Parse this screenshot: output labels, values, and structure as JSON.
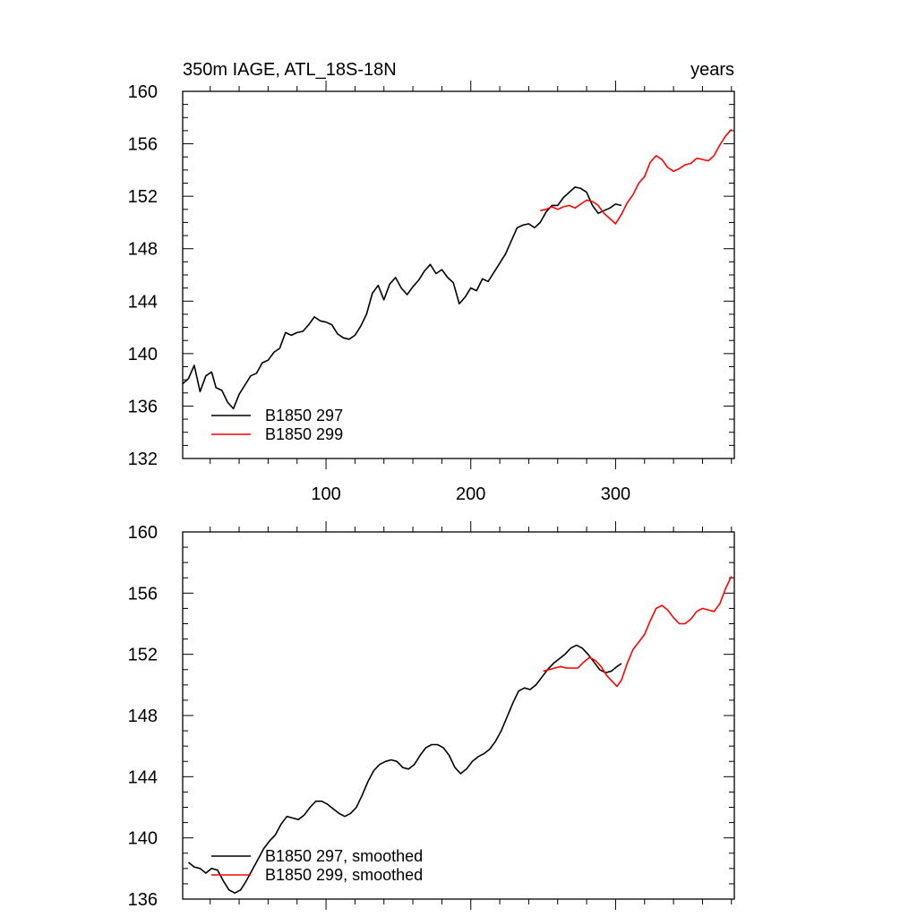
{
  "chart_data": [
    {
      "type": "line",
      "title": "350m IAGE, ATL_18S-18N",
      "units": "years",
      "xlim": [
        1,
        382
      ],
      "ylim": [
        132,
        160
      ],
      "x_ticks": [
        100,
        200,
        300
      ],
      "x_tick_labels": [
        "100",
        "200",
        "300"
      ],
      "y_ticks": [
        132,
        136,
        140,
        144,
        148,
        152,
        156,
        160
      ],
      "y_tick_labels": [
        "132",
        "136",
        "140",
        "144",
        "148",
        "152",
        "156",
        "160"
      ],
      "legend": {
        "placement": "bottom-left"
      },
      "series": [
        {
          "name": "B1850 297",
          "color": "#000000",
          "points": [
            [
              1,
              137.7
            ],
            [
              5,
              138.1
            ],
            [
              9,
              139.1
            ],
            [
              13,
              137.1
            ],
            [
              17,
              138.3
            ],
            [
              21,
              138.6
            ],
            [
              24,
              137.4
            ],
            [
              28,
              137.2
            ],
            [
              32,
              136.3
            ],
            [
              36,
              135.8
            ],
            [
              40,
              136.9
            ],
            [
              44,
              137.6
            ],
            [
              48,
              138.3
            ],
            [
              52,
              138.5
            ],
            [
              56,
              139.3
            ],
            [
              60,
              139.5
            ],
            [
              64,
              140.1
            ],
            [
              68,
              140.4
            ],
            [
              72,
              141.6
            ],
            [
              76,
              141.4
            ],
            [
              80,
              141.6
            ],
            [
              84,
              141.7
            ],
            [
              88,
              142.2
            ],
            [
              92,
              142.8
            ],
            [
              96,
              142.5
            ],
            [
              100,
              142.4
            ],
            [
              104,
              142.2
            ],
            [
              108,
              141.5
            ],
            [
              112,
              141.2
            ],
            [
              116,
              141.1
            ],
            [
              120,
              141.4
            ],
            [
              124,
              142.1
            ],
            [
              128,
              143.0
            ],
            [
              132,
              144.6
            ],
            [
              136,
              145.2
            ],
            [
              140,
              144.1
            ],
            [
              144,
              145.3
            ],
            [
              148,
              145.8
            ],
            [
              152,
              145.0
            ],
            [
              156,
              144.5
            ],
            [
              160,
              145.1
            ],
            [
              164,
              145.6
            ],
            [
              168,
              146.3
            ],
            [
              172,
              146.8
            ],
            [
              176,
              146.1
            ],
            [
              180,
              146.4
            ],
            [
              184,
              145.8
            ],
            [
              188,
              145.4
            ],
            [
              192,
              143.8
            ],
            [
              196,
              144.3
            ],
            [
              200,
              145.0
            ],
            [
              204,
              144.8
            ],
            [
              208,
              145.7
            ],
            [
              212,
              145.5
            ],
            [
              216,
              146.2
            ],
            [
              220,
              146.9
            ],
            [
              224,
              147.6
            ],
            [
              228,
              148.6
            ],
            [
              232,
              149.6
            ],
            [
              236,
              149.8
            ],
            [
              240,
              149.9
            ],
            [
              244,
              149.6
            ],
            [
              248,
              150.0
            ],
            [
              252,
              150.8
            ],
            [
              256,
              151.3
            ],
            [
              260,
              151.3
            ],
            [
              264,
              151.9
            ],
            [
              268,
              152.3
            ],
            [
              272,
              152.7
            ],
            [
              276,
              152.6
            ],
            [
              280,
              152.3
            ],
            [
              284,
              151.3
            ],
            [
              288,
              150.7
            ],
            [
              292,
              150.9
            ],
            [
              296,
              151.1
            ],
            [
              300,
              151.4
            ],
            [
              304,
              151.3
            ]
          ]
        },
        {
          "name": "B1850 299",
          "color": "#ff0000",
          "points": [
            [
              248,
              150.9
            ],
            [
              252,
              151.0
            ],
            [
              256,
              151.2
            ],
            [
              260,
              151.0
            ],
            [
              264,
              151.2
            ],
            [
              268,
              151.3
            ],
            [
              272,
              151.1
            ],
            [
              276,
              151.4
            ],
            [
              280,
              151.7
            ],
            [
              284,
              151.6
            ],
            [
              288,
              151.3
            ],
            [
              292,
              150.7
            ],
            [
              296,
              150.3
            ],
            [
              300,
              149.9
            ],
            [
              304,
              150.6
            ],
            [
              308,
              151.5
            ],
            [
              312,
              152.1
            ],
            [
              316,
              153.0
            ],
            [
              320,
              153.5
            ],
            [
              324,
              154.6
            ],
            [
              328,
              155.1
            ],
            [
              332,
              154.8
            ],
            [
              336,
              154.2
            ],
            [
              340,
              153.9
            ],
            [
              344,
              154.1
            ],
            [
              348,
              154.4
            ],
            [
              352,
              154.5
            ],
            [
              356,
              154.9
            ],
            [
              360,
              154.8
            ],
            [
              364,
              154.7
            ],
            [
              368,
              155.1
            ],
            [
              372,
              155.9
            ],
            [
              376,
              156.6
            ],
            [
              380,
              157.1
            ]
          ]
        }
      ]
    },
    {
      "type": "line",
      "title": "",
      "xlim": [
        1,
        382
      ],
      "ylim": [
        136,
        160
      ],
      "x_ticks": [
        100,
        200,
        300
      ],
      "x_tick_labels": [],
      "y_ticks": [
        136,
        140,
        144,
        148,
        152,
        156,
        160
      ],
      "y_tick_labels": [
        "136",
        "140",
        "144",
        "148",
        "152",
        "156",
        "160"
      ],
      "legend": {
        "placement": "bottom-left"
      },
      "series": [
        {
          "name": "B1850 297, smoothed",
          "color": "#000000",
          "points": [
            [
              5,
              138.4
            ],
            [
              9,
              138.1
            ],
            [
              13,
              138.0
            ],
            [
              17,
              137.7
            ],
            [
              21,
              138.0
            ],
            [
              25,
              137.9
            ],
            [
              29,
              137.2
            ],
            [
              33,
              136.6
            ],
            [
              37,
              136.4
            ],
            [
              41,
              136.6
            ],
            [
              45,
              137.2
            ],
            [
              49,
              137.9
            ],
            [
              53,
              138.6
            ],
            [
              57,
              139.3
            ],
            [
              61,
              139.8
            ],
            [
              65,
              140.2
            ],
            [
              69,
              140.9
            ],
            [
              73,
              141.4
            ],
            [
              77,
              141.3
            ],
            [
              81,
              141.2
            ],
            [
              85,
              141.5
            ],
            [
              89,
              142.0
            ],
            [
              93,
              142.4
            ],
            [
              97,
              142.4
            ],
            [
              101,
              142.2
            ],
            [
              105,
              141.9
            ],
            [
              109,
              141.6
            ],
            [
              113,
              141.4
            ],
            [
              117,
              141.6
            ],
            [
              121,
              142.0
            ],
            [
              125,
              142.8
            ],
            [
              129,
              143.7
            ],
            [
              133,
              144.4
            ],
            [
              137,
              144.8
            ],
            [
              141,
              145.0
            ],
            [
              145,
              145.1
            ],
            [
              149,
              145.0
            ],
            [
              153,
              144.6
            ],
            [
              157,
              144.5
            ],
            [
              161,
              144.8
            ],
            [
              165,
              145.4
            ],
            [
              169,
              145.9
            ],
            [
              173,
              146.1
            ],
            [
              177,
              146.1
            ],
            [
              181,
              145.9
            ],
            [
              185,
              145.4
            ],
            [
              189,
              144.6
            ],
            [
              193,
              144.2
            ],
            [
              197,
              144.5
            ],
            [
              201,
              145.0
            ],
            [
              205,
              145.3
            ],
            [
              209,
              145.5
            ],
            [
              213,
              145.8
            ],
            [
              217,
              146.3
            ],
            [
              221,
              147.0
            ],
            [
              225,
              147.9
            ],
            [
              229,
              148.8
            ],
            [
              233,
              149.6
            ],
            [
              237,
              149.8
            ],
            [
              241,
              149.7
            ],
            [
              245,
              150.0
            ],
            [
              249,
              150.5
            ],
            [
              253,
              151.0
            ],
            [
              257,
              151.4
            ],
            [
              261,
              151.7
            ],
            [
              265,
              152.0
            ],
            [
              269,
              152.4
            ],
            [
              273,
              152.6
            ],
            [
              277,
              152.4
            ],
            [
              281,
              152.0
            ],
            [
              285,
              151.5
            ],
            [
              289,
              151.0
            ],
            [
              293,
              150.8
            ],
            [
              297,
              150.9
            ],
            [
              301,
              151.2
            ],
            [
              304,
              151.4
            ]
          ]
        },
        {
          "name": "B1850 299, smoothed",
          "color": "#ff0000",
          "points": [
            [
              250,
              150.9
            ],
            [
              254,
              151.0
            ],
            [
              258,
              151.1
            ],
            [
              262,
              151.2
            ],
            [
              266,
              151.1
            ],
            [
              270,
              151.1
            ],
            [
              274,
              151.1
            ],
            [
              278,
              151.5
            ],
            [
              282,
              151.8
            ],
            [
              286,
              151.6
            ],
            [
              290,
              151.2
            ],
            [
              294,
              150.6
            ],
            [
              298,
              150.2
            ],
            [
              301,
              149.9
            ],
            [
              304,
              150.3
            ],
            [
              308,
              151.4
            ],
            [
              312,
              152.3
            ],
            [
              316,
              152.8
            ],
            [
              320,
              153.3
            ],
            [
              324,
              154.2
            ],
            [
              328,
              155.0
            ],
            [
              332,
              155.2
            ],
            [
              336,
              154.9
            ],
            [
              340,
              154.4
            ],
            [
              344,
              154.0
            ],
            [
              348,
              154.0
            ],
            [
              352,
              154.3
            ],
            [
              356,
              154.8
            ],
            [
              360,
              155.0
            ],
            [
              364,
              154.9
            ],
            [
              368,
              154.8
            ],
            [
              372,
              155.3
            ],
            [
              376,
              156.3
            ],
            [
              380,
              157.1
            ]
          ]
        }
      ]
    }
  ]
}
